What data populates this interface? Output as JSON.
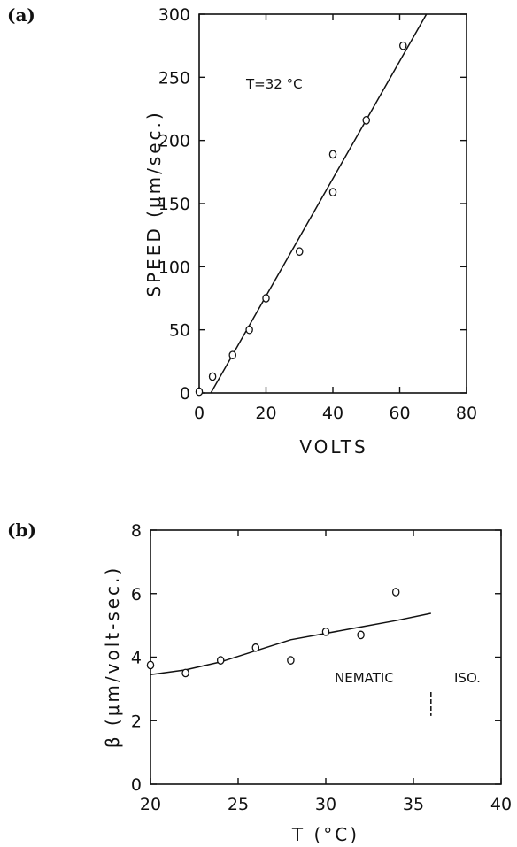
{
  "chart_data": [
    {
      "type": "scatter",
      "panel_label": "(a)",
      "xlabel": "VOLTS",
      "ylabel": "SPEED (μm/sec.)",
      "xlim": [
        0,
        80
      ],
      "ylim": [
        0,
        300
      ],
      "xticks": [
        "0",
        "20",
        "40",
        "60",
        "80"
      ],
      "yticks": [
        "0",
        "50",
        "100",
        "150",
        "200",
        "250",
        "300"
      ],
      "annotation": "T=32 °C",
      "series": [
        {
          "kind": "points",
          "x": [
            0,
            4,
            10,
            15,
            20,
            30,
            40,
            40,
            50,
            61
          ],
          "y": [
            1,
            13,
            30,
            50,
            75,
            112,
            159,
            189,
            216,
            275
          ]
        },
        {
          "kind": "fit-line",
          "x": [
            3.5,
            68
          ],
          "y": [
            0,
            300
          ]
        }
      ]
    },
    {
      "type": "scatter",
      "panel_label": "(b)",
      "xlabel": "T (°C)",
      "ylabel": "β (μm/volt-sec.)",
      "xlim": [
        20,
        40
      ],
      "ylim": [
        0,
        8
      ],
      "xticks": [
        "20",
        "25",
        "30",
        "35",
        "40"
      ],
      "yticks": [
        "0",
        "2",
        "4",
        "6",
        "8"
      ],
      "annotations": [
        "NEMATIC",
        "ISO."
      ],
      "phase_boundary_x": 36,
      "series": [
        {
          "kind": "points",
          "x": [
            20,
            22,
            24,
            26,
            28,
            30,
            32,
            34
          ],
          "y": [
            3.75,
            3.5,
            3.9,
            4.3,
            3.9,
            4.8,
            4.7,
            6.05
          ]
        },
        {
          "kind": "fit-line",
          "x": [
            20,
            22,
            24,
            26,
            28,
            30,
            32,
            34,
            36
          ],
          "y": [
            3.45,
            3.6,
            3.85,
            4.2,
            4.55,
            4.75,
            4.95,
            5.15,
            5.38
          ]
        }
      ]
    }
  ]
}
